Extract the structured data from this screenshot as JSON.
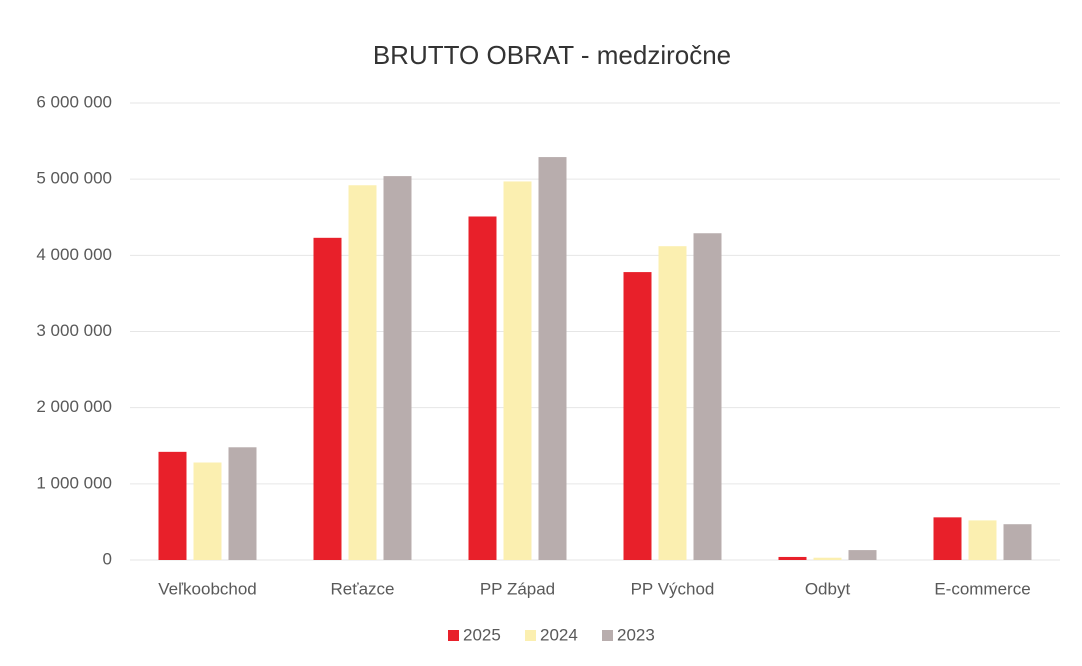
{
  "chart_data": {
    "type": "bar",
    "title": "BRUTTO OBRAT - medziročne",
    "categories": [
      "Veľkoobchod",
      "Reťazce",
      "PP Západ",
      "PP Východ",
      "Odbyt",
      "E-commerce"
    ],
    "series": [
      {
        "name": "2025",
        "color": "#e8202a",
        "values": [
          1420000,
          4230000,
          4510000,
          3780000,
          40000,
          560000
        ]
      },
      {
        "name": "2024",
        "color": "#fbefb0",
        "values": [
          1280000,
          4920000,
          4970000,
          4120000,
          30000,
          520000
        ]
      },
      {
        "name": "2023",
        "color": "#b8adad",
        "values": [
          1480000,
          5040000,
          5290000,
          4290000,
          130000,
          470000
        ]
      }
    ],
    "ylim": [
      0,
      6000000
    ],
    "yticks": [
      0,
      {
        "value": 1000000,
        "label": "1 000 000"
      },
      {
        "value": 2000000,
        "label": "2 000 000"
      },
      {
        "value": 3000000,
        "label": "3 000 000"
      },
      {
        "value": 4000000,
        "label": "4 000 000"
      },
      {
        "value": 5000000,
        "label": "5 000 000"
      },
      {
        "value": 6000000,
        "label": "6 000 000"
      }
    ],
    "grid": true,
    "legend": "bottom"
  }
}
